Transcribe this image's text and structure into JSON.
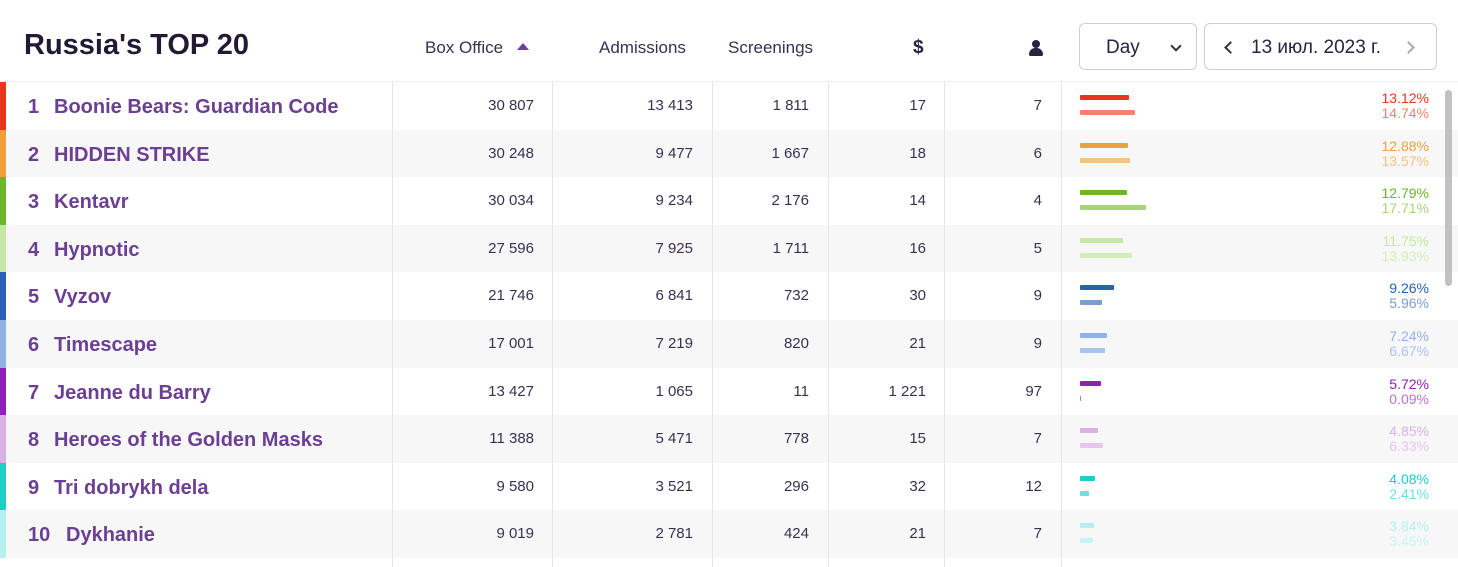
{
  "header": {
    "title": "Russia's TOP 20",
    "columns": {
      "box_office": "Box Office",
      "admissions": "Admissions",
      "screenings": "Screenings",
      "dollar": "$"
    },
    "period_select": "Day",
    "date": "13 июл. 2023 г."
  },
  "rows": [
    {
      "rank": "1",
      "name": "Boonie Bears: Guardian Code",
      "box_office": "30 807",
      "admissions": "13 413",
      "screenings": "1 811",
      "avg_usd": "17",
      "avg_persons": "7",
      "pct_box": "13.12%",
      "pct_adm": "14.74%",
      "share_box": 0.1312,
      "share_adm": 0.1474,
      "color": "#e8361c",
      "color_light": "#f08468"
    },
    {
      "rank": "2",
      "name": "HIDDEN STRIKE",
      "box_office": "30 248",
      "admissions": "9 477",
      "screenings": "1 667",
      "avg_usd": "18",
      "avg_persons": "6",
      "pct_box": "12.88%",
      "pct_adm": "13.57%",
      "share_box": 0.1288,
      "share_adm": 0.1357,
      "color": "#f0a03a",
      "color_light": "#f4c282"
    },
    {
      "rank": "3",
      "name": "Kentavr",
      "box_office": "30 034",
      "admissions": "9 234",
      "screenings": "2 176",
      "avg_usd": "14",
      "avg_persons": "4",
      "pct_box": "12.79%",
      "pct_adm": "17.71%",
      "share_box": 0.1279,
      "share_adm": 0.1771,
      "color": "#6db52a",
      "color_light": "#a7d47a"
    },
    {
      "rank": "4",
      "name": "Hypnotic",
      "box_office": "27 596",
      "admissions": "7 925",
      "screenings": "1 711",
      "avg_usd": "16",
      "avg_persons": "5",
      "pct_box": "11.75%",
      "pct_adm": "13.93%",
      "share_box": 0.1175,
      "share_adm": 0.1393,
      "color": "#c6e8a2",
      "color_light": "#d4eeb9"
    },
    {
      "rank": "5",
      "name": "Vyzov",
      "box_office": "21 746",
      "admissions": "6 841",
      "screenings": "732",
      "avg_usd": "30",
      "avg_persons": "9",
      "pct_box": "9.26%",
      "pct_adm": "5.96%",
      "share_box": 0.0926,
      "share_adm": 0.0596,
      "color": "#2860b8",
      "color_light": "#7a9dd2"
    },
    {
      "rank": "6",
      "name": "Timescape",
      "box_office": "17 001",
      "admissions": "7 219",
      "screenings": "820",
      "avg_usd": "21",
      "avg_persons": "9",
      "pct_box": "7.24%",
      "pct_adm": "6.67%",
      "share_box": 0.0724,
      "share_adm": 0.0667,
      "color": "#8fb3e6",
      "color_light": "#a8c5ee"
    },
    {
      "rank": "7",
      "name": "Jeanne du Barry",
      "box_office": "13 427",
      "admissions": "1 065",
      "screenings": "11",
      "avg_usd": "1 221",
      "avg_persons": "97",
      "pct_box": "5.72%",
      "pct_adm": "0.09%",
      "share_box": 0.0572,
      "share_adm": 0.0009,
      "color": "#8e1fb8",
      "color_light": "#bb71d6"
    },
    {
      "rank": "8",
      "name": "Heroes of the Golden Masks",
      "box_office": "11 388",
      "admissions": "5 471",
      "screenings": "778",
      "avg_usd": "15",
      "avg_persons": "7",
      "pct_box": "4.85%",
      "pct_adm": "6.33%",
      "share_box": 0.0485,
      "share_adm": 0.0633,
      "color": "#dcb0e6",
      "color_light": "#e6c6ee"
    },
    {
      "rank": "9",
      "name": "Tri dobrykh dela",
      "box_office": "9 580",
      "admissions": "3 521",
      "screenings": "296",
      "avg_usd": "32",
      "avg_persons": "12",
      "pct_box": "4.08%",
      "pct_adm": "2.41%",
      "share_box": 0.0408,
      "share_adm": 0.0241,
      "color": "#1ecdc8",
      "color_light": "#6ee0dc"
    },
    {
      "rank": "10",
      "name": "Dykhanie",
      "box_office": "9 019",
      "admissions": "2 781",
      "screenings": "424",
      "avg_usd": "21",
      "avg_persons": "7",
      "pct_box": "3.84%",
      "pct_adm": "3.45%",
      "share_box": 0.0384,
      "share_adm": 0.0345,
      "color": "#b4f0f0",
      "color_light": "#c8f4f4"
    }
  ]
}
